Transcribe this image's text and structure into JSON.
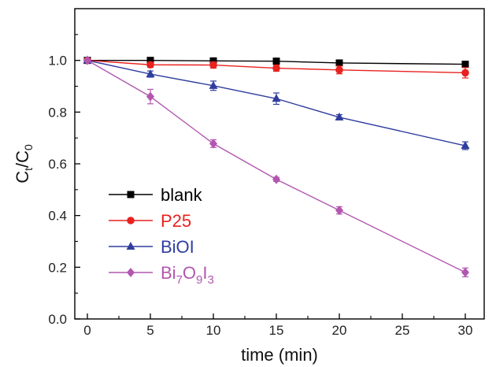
{
  "chart_data": {
    "type": "line",
    "xlabel": "time (min)",
    "ylabel": {
      "main": "C",
      "sub1": "t",
      "slash": "/C",
      "sub2": "0"
    },
    "xlim": [
      -1,
      31.5
    ],
    "ylim": [
      0,
      1.2
    ],
    "xticks": [
      0,
      5,
      10,
      15,
      20,
      25,
      30
    ],
    "yticks": [
      0.0,
      0.2,
      0.4,
      0.6,
      0.8,
      1.0
    ],
    "ytick_labels": [
      "0.0",
      "0.2",
      "0.4",
      "0.6",
      "0.8",
      "1.0"
    ],
    "grid": false,
    "legend_position": "lower-left",
    "series": [
      {
        "name": "blank",
        "label_parts": [
          {
            "text": "blank"
          }
        ],
        "color": "#000000",
        "marker": "square",
        "x": [
          0,
          5,
          10,
          15,
          20,
          30
        ],
        "y": [
          1.0,
          1.0,
          0.998,
          0.997,
          0.99,
          0.985
        ],
        "err": [
          0.0,
          0.005,
          0.005,
          0.005,
          0.006,
          0.006
        ]
      },
      {
        "name": "P25",
        "label_parts": [
          {
            "text": "P25"
          }
        ],
        "color": "#e8221f",
        "marker": "circle",
        "x": [
          0,
          5,
          10,
          15,
          20,
          30
        ],
        "y": [
          1.0,
          0.983,
          0.982,
          0.97,
          0.963,
          0.952
        ],
        "err": [
          0.0,
          0.01,
          0.012,
          0.012,
          0.015,
          0.02
        ]
      },
      {
        "name": "BiOI",
        "label_parts": [
          {
            "text": "BiOI"
          }
        ],
        "color": "#2f3e9e",
        "marker": "triangle",
        "x": [
          0,
          5,
          10,
          15,
          20,
          30
        ],
        "y": [
          1.0,
          0.947,
          0.902,
          0.852,
          0.78,
          0.67
        ],
        "err": [
          0.0,
          0.012,
          0.018,
          0.022,
          0.01,
          0.015
        ]
      },
      {
        "name": "Bi7O9I3",
        "label_parts": [
          {
            "text": "Bi"
          },
          {
            "text": "7",
            "sub": true
          },
          {
            "text": "O"
          },
          {
            "text": "9",
            "sub": true
          },
          {
            "text": "I"
          },
          {
            "text": "3",
            "sub": true
          }
        ],
        "color": "#b257b0",
        "marker": "diamond",
        "x": [
          0,
          5,
          10,
          15,
          20,
          30
        ],
        "y": [
          1.0,
          0.86,
          0.678,
          0.54,
          0.42,
          0.18
        ],
        "err": [
          0.0,
          0.028,
          0.015,
          0.008,
          0.014,
          0.017
        ]
      }
    ]
  }
}
